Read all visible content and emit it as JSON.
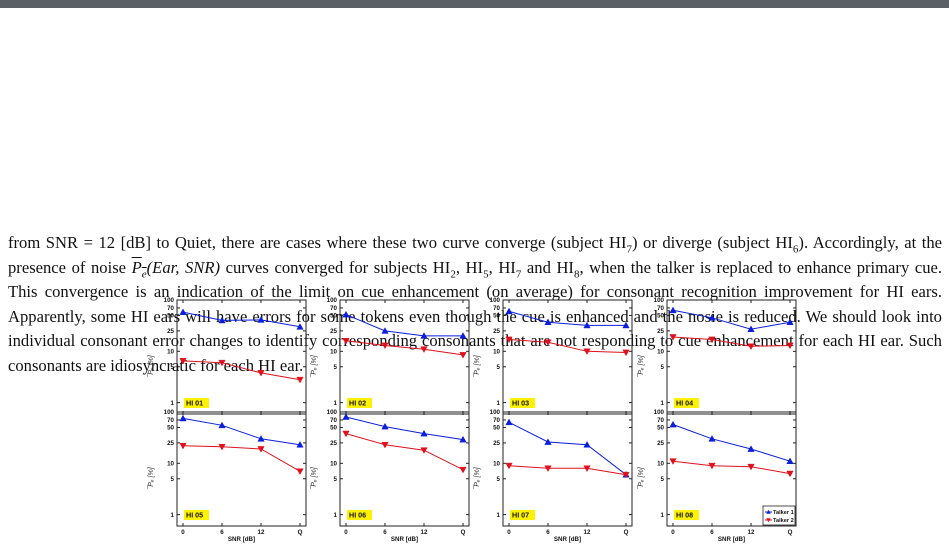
{
  "paragraph": {
    "l1a": "from SNR = 12 [dB] to Quiet, there are cases where these two curve converge (subject HI",
    "l1s": "7",
    "l1b": ") or diverge",
    "l2a": "(subject HI",
    "l2s": "6",
    "l2b": "). Accordingly, at the presence of noise ",
    "l2pe": "P",
    "l2pes": "e",
    "l2c": "(Ear, SNR)",
    "l2d": " curves converged for subjects HI",
    "l2s2": "2",
    "l2e": ", HI",
    "l2s3": "5",
    "l2f": ",",
    "l3a": "HI",
    "l3s": "7",
    "l3b": " and HI",
    "l3s2": "8",
    "l3c": ", when the talker is replaced to enhance primary cue. This convergence is an indication of the",
    "l4": "limit on cue enhancement (on average) for consonant recognition improvement for HI ears. Apparently,",
    "l5": "some HI ears will have errors for some tokens even though the cue is enhanced and the nosie is reduced.",
    "l6": "We should look into individual consonant error changes to identify corresponding consonants that are not",
    "l7": "responding to cue enhancement for each HI ear. Such consonants are idiosyncratic for each HI ear."
  },
  "chart_data": [
    {
      "type": "line",
      "label": "HI 01",
      "categories": [
        "0",
        "6",
        "12",
        "Q"
      ],
      "series": [
        {
          "name": "Talker 1",
          "values": [
            58,
            40,
            41,
            30
          ]
        },
        {
          "name": "Talker 2",
          "values": [
            6.5,
            6.0,
            3.8,
            2.8
          ]
        }
      ],
      "ylabel": "̅Pₑ [%]",
      "xlabel": "",
      "yscale": "log",
      "ylim": [
        0.6,
        100
      ],
      "yticks": [
        "1",
        "5",
        "10",
        "25",
        "50",
        "70",
        "100"
      ]
    },
    {
      "type": "line",
      "label": "HI 02",
      "categories": [
        "0",
        "6",
        "12",
        "Q"
      ],
      "series": [
        {
          "name": "Talker 1",
          "values": [
            52,
            25,
            20,
            20
          ]
        },
        {
          "name": "Talker 2",
          "values": [
            16,
            13,
            11,
            8.5
          ]
        }
      ],
      "ylabel": "̅Pₑ [%]",
      "xlabel": "",
      "yscale": "log",
      "ylim": [
        0.6,
        100
      ],
      "yticks": [
        "1",
        "5",
        "10",
        "25",
        "50",
        "70",
        "100"
      ]
    },
    {
      "type": "line",
      "label": "HI 03",
      "categories": [
        "0",
        "6",
        "12",
        "Q"
      ],
      "series": [
        {
          "name": "Talker 1",
          "values": [
            60,
            37,
            32,
            32
          ]
        },
        {
          "name": "Talker 2",
          "values": [
            17,
            15,
            10,
            9.5
          ]
        }
      ],
      "ylabel": "̅Pₑ [%]",
      "xlabel": "",
      "yscale": "log",
      "ylim": [
        0.6,
        100
      ],
      "yticks": [
        "1",
        "5",
        "10",
        "25",
        "50",
        "70",
        "100"
      ]
    },
    {
      "type": "line",
      "label": "HI 04",
      "categories": [
        "0",
        "6",
        "12",
        "Q"
      ],
      "series": [
        {
          "name": "Talker 1",
          "values": [
            63,
            45,
            27,
            37
          ]
        },
        {
          "name": "Talker 2",
          "values": [
            19,
            17,
            12.5,
            13
          ]
        }
      ],
      "ylabel": "̅Pₑ [%]",
      "xlabel": "",
      "yscale": "log",
      "ylim": [
        0.6,
        100
      ],
      "yticks": [
        "1",
        "5",
        "10",
        "25",
        "50",
        "70",
        "100"
      ]
    },
    {
      "type": "line",
      "label": "HI 05",
      "categories": [
        "0",
        "6",
        "12",
        "Q"
      ],
      "series": [
        {
          "name": "Talker 1",
          "values": [
            75,
            55,
            30,
            23
          ]
        },
        {
          "name": "Talker 2",
          "values": [
            22,
            21,
            19,
            7
          ]
        }
      ],
      "ylabel": "̅Pₑ [%]",
      "xlabel": "SNR [dB]",
      "yscale": "log",
      "ylim": [
        0.6,
        100
      ],
      "yticks": [
        "1",
        "5",
        "10",
        "25",
        "50",
        "70",
        "100"
      ]
    },
    {
      "type": "line",
      "label": "HI 06",
      "categories": [
        "0",
        "6",
        "12",
        "Q"
      ],
      "series": [
        {
          "name": "Talker 1",
          "values": [
            80,
            52,
            38,
            29
          ]
        },
        {
          "name": "Talker 2",
          "values": [
            38,
            23,
            18,
            7.5
          ]
        }
      ],
      "ylabel": "̅Pₑ [%]",
      "xlabel": "SNR [dB]",
      "yscale": "log",
      "ylim": [
        0.6,
        100
      ],
      "yticks": [
        "1",
        "5",
        "10",
        "25",
        "50",
        "70",
        "100"
      ]
    },
    {
      "type": "line",
      "label": "HI 07",
      "categories": [
        "0",
        "6",
        "12",
        "Q"
      ],
      "series": [
        {
          "name": "Talker 1",
          "values": [
            63,
            26,
            23,
            6
          ]
        },
        {
          "name": "Talker 2",
          "values": [
            9,
            8,
            8,
            6
          ]
        }
      ],
      "ylabel": "̅Pₑ [%]",
      "xlabel": "SNR [dB]",
      "yscale": "log",
      "ylim": [
        0.6,
        100
      ],
      "yticks": [
        "1",
        "5",
        "10",
        "25",
        "50",
        "70",
        "100"
      ]
    },
    {
      "type": "line",
      "label": "HI 08",
      "categories": [
        "0",
        "6",
        "12",
        "Q"
      ],
      "series": [
        {
          "name": "Talker 1",
          "values": [
            57,
            30,
            19,
            11
          ]
        },
        {
          "name": "Talker 2",
          "values": [
            11,
            9,
            8.6,
            6.3
          ]
        }
      ],
      "ylabel": "̅Pₑ [%]",
      "xlabel": "SNR [dB]",
      "yscale": "log",
      "ylim": [
        0.6,
        100
      ],
      "yticks": [
        "1",
        "5",
        "10",
        "25",
        "50",
        "70",
        "100"
      ],
      "legend": [
        "Talker 1",
        "Talker 2"
      ],
      "legend_position": "bottom-right"
    }
  ],
  "colors": {
    "talker1": "#0a1edc",
    "talker2": "#e0101c",
    "label_bg": "#fff200",
    "topbar": "#5b5f66"
  }
}
